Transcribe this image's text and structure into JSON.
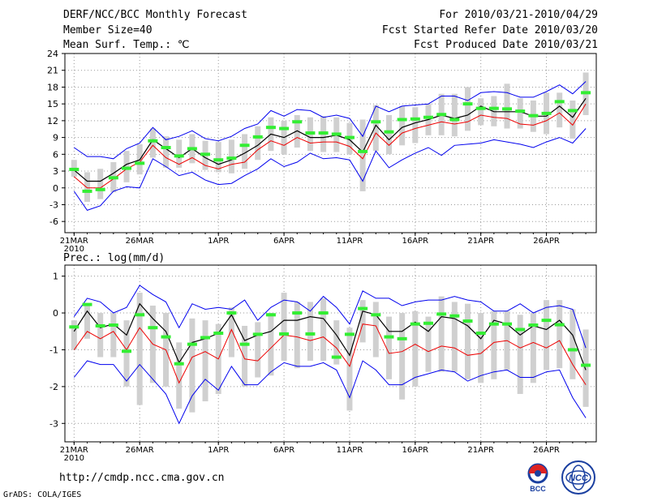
{
  "header": {
    "title": "DERF/NCC/BCC Monthly Forecast",
    "member": "Member Size=40",
    "variable": "Mean Surf. Temp.: ℃",
    "period": "For 2010/03/21-2010/04/29",
    "started": "Fcst Started Refer Date 2010/03/20",
    "produced": "Fcst Produced Date 2010/03/21"
  },
  "footer": {
    "url": "http://cmdp.ncc.cma.gov.cn",
    "credit": "GrADS: COLA/IGES",
    "logo_left": "BCC",
    "logo_right": "NCC"
  },
  "colors": {
    "envelope": "#0000ee",
    "median": "#000000",
    "mean": "#ee0000",
    "observed": "#33ee33",
    "box": "#d0d0d0",
    "grid": "#999999"
  },
  "chart_data": [
    {
      "type": "line",
      "name": "temperature",
      "title": "Mean Surf. Temp.: ℃",
      "ylim": [
        -8,
        24
      ],
      "yticks": [
        -6,
        -3,
        0,
        3,
        6,
        9,
        12,
        15,
        18,
        21,
        24
      ],
      "xticks": [
        {
          "day": 1,
          "label": "21MAR",
          "sub": "2010"
        },
        {
          "day": 6,
          "label": "26MAR"
        },
        {
          "day": 12,
          "label": "1APR"
        },
        {
          "day": 17,
          "label": "6APR"
        },
        {
          "day": 22,
          "label": "11APR"
        },
        {
          "day": 27,
          "label": "16APR"
        },
        {
          "day": 32,
          "label": "21APR"
        },
        {
          "day": 37,
          "label": "26APR"
        }
      ],
      "days": 40,
      "series": [
        {
          "name": "max",
          "values": [
            7.2,
            5.6,
            5.6,
            5.2,
            7.0,
            8.0,
            10.8,
            8.6,
            9.2,
            10.2,
            8.8,
            8.4,
            9.2,
            10.6,
            11.4,
            13.8,
            12.8,
            14.0,
            13.8,
            12.6,
            13.0,
            12.4,
            9.2,
            14.6,
            13.6,
            14.6,
            14.8,
            15.0,
            16.4,
            16.4,
            15.6,
            17.0,
            17.2,
            17.0,
            16.2,
            16.2,
            17.2,
            18.4,
            16.8,
            19.0
          ]
        },
        {
          "name": "median",
          "values": [
            3.2,
            1.2,
            1.2,
            2.6,
            4.2,
            5.0,
            8.6,
            7.0,
            5.4,
            7.0,
            5.4,
            4.2,
            5.0,
            6.2,
            7.6,
            9.6,
            9.0,
            10.2,
            9.0,
            9.0,
            9.4,
            8.6,
            6.4,
            11.2,
            8.6,
            10.8,
            11.6,
            12.2,
            13.0,
            12.4,
            13.0,
            14.6,
            13.6,
            13.6,
            13.6,
            12.8,
            12.8,
            14.6,
            12.6,
            16.0
          ]
        },
        {
          "name": "mean",
          "values": [
            2.0,
            0.0,
            0.0,
            1.6,
            3.4,
            4.6,
            7.6,
            5.4,
            4.2,
            5.4,
            4.0,
            3.4,
            4.2,
            4.6,
            6.8,
            8.4,
            7.6,
            9.0,
            8.0,
            8.2,
            8.2,
            7.4,
            5.2,
            9.8,
            7.6,
            9.8,
            10.6,
            11.2,
            11.8,
            11.4,
            11.8,
            13.0,
            12.6,
            12.4,
            11.4,
            11.2,
            12.0,
            13.4,
            11.2,
            15.0
          ]
        },
        {
          "name": "min",
          "values": [
            -0.6,
            -4.0,
            -3.2,
            -0.6,
            0.2,
            0.0,
            5.2,
            3.8,
            2.2,
            2.8,
            1.4,
            0.6,
            0.8,
            2.2,
            3.4,
            5.2,
            3.8,
            4.6,
            6.2,
            5.2,
            5.4,
            5.0,
            1.2,
            6.6,
            3.6,
            5.0,
            6.2,
            7.2,
            5.8,
            7.6,
            7.8,
            8.0,
            8.6,
            8.2,
            7.8,
            7.2,
            8.2,
            9.0,
            8.0,
            10.6
          ]
        },
        {
          "name": "observed",
          "values": [
            3.3,
            -0.6,
            -0.3,
            1.8,
            3.5,
            4.4,
            8.4,
            7.2,
            5.7,
            7.0,
            6.0,
            5.0,
            5.3,
            7.6,
            9.1,
            10.8,
            10.6,
            11.8,
            9.8,
            9.8,
            9.6,
            9.0,
            6.5,
            11.8,
            10.0,
            12.2,
            12.3,
            12.6,
            13.1,
            12.2,
            15.0,
            14.2,
            14.2,
            14.1,
            13.7,
            12.9,
            13.3,
            15.4,
            13.8,
            17.0
          ]
        }
      ],
      "boxes": [
        [
          2,
          5
        ],
        [
          -2.5,
          2.8
        ],
        [
          -2.0,
          3.4
        ],
        [
          -0.8,
          4.6
        ],
        [
          1.0,
          6.6
        ],
        [
          2.4,
          7.8
        ],
        [
          5.4,
          10.6
        ],
        [
          3.6,
          9.2
        ],
        [
          3.6,
          8.6
        ],
        [
          4.4,
          9.6
        ],
        [
          3.2,
          8.4
        ],
        [
          2.8,
          8.2
        ],
        [
          2.6,
          8.6
        ],
        [
          3.4,
          9.6
        ],
        [
          5.0,
          11.0
        ],
        [
          6.6,
          12.6
        ],
        [
          6.0,
          12.0
        ],
        [
          7.2,
          13.0
        ],
        [
          6.6,
          12.6
        ],
        [
          6.4,
          12.8
        ],
        [
          6.4,
          12.6
        ],
        [
          6.0,
          11.6
        ],
        [
          -0.6,
          12.2
        ],
        [
          6.6,
          14.8
        ],
        [
          6.0,
          13.0
        ],
        [
          7.6,
          14.6
        ],
        [
          8.0,
          14.4
        ],
        [
          9.4,
          15.0
        ],
        [
          9.4,
          16.8
        ],
        [
          9.2,
          16.8
        ],
        [
          10.2,
          18.0
        ],
        [
          11.2,
          16.0
        ],
        [
          11.0,
          16.4
        ],
        [
          10.6,
          18.6
        ],
        [
          10.6,
          16.0
        ],
        [
          10.0,
          15.6
        ],
        [
          9.6,
          17.0
        ],
        [
          10.8,
          17.0
        ],
        [
          8.8,
          15.6
        ],
        [
          13.0,
          20.6
        ]
      ]
    },
    {
      "type": "line",
      "name": "precipitation",
      "title": "Prec.: log(mm/d)",
      "ylim": [
        -3.5,
        1.3
      ],
      "yticks": [
        -3,
        -2,
        -1,
        0,
        1
      ],
      "xticks": [
        {
          "day": 1,
          "label": "21MAR",
          "sub": "2010"
        },
        {
          "day": 6,
          "label": "26MAR"
        },
        {
          "day": 12,
          "label": "1APR"
        },
        {
          "day": 17,
          "label": "6APR"
        },
        {
          "day": 22,
          "label": "11APR"
        },
        {
          "day": 27,
          "label": "16APR"
        },
        {
          "day": 32,
          "label": "21APR"
        },
        {
          "day": 37,
          "label": "26APR"
        }
      ],
      "days": 40,
      "series": [
        {
          "name": "max",
          "values": [
            -0.1,
            0.4,
            0.3,
            0.0,
            0.15,
            0.75,
            0.5,
            0.3,
            -0.4,
            0.25,
            0.1,
            0.15,
            0.1,
            0.35,
            -0.2,
            0.15,
            0.35,
            0.3,
            0.05,
            0.45,
            0.15,
            -0.3,
            0.6,
            0.4,
            0.4,
            0.2,
            0.3,
            0.35,
            0.35,
            0.45,
            0.35,
            0.3,
            0.05,
            0.05,
            0.25,
            0.0,
            0.15,
            0.2,
            0.1,
            -0.95
          ]
        },
        {
          "name": "median",
          "values": [
            -0.5,
            0.05,
            -0.4,
            -0.3,
            -0.6,
            0.25,
            -0.15,
            -0.5,
            -1.35,
            -0.8,
            -0.7,
            -0.55,
            -0.05,
            -0.75,
            -0.6,
            -0.5,
            -0.2,
            -0.2,
            -0.1,
            -0.15,
            -0.6,
            -1.15,
            0.05,
            -0.05,
            -0.5,
            -0.5,
            -0.25,
            -0.5,
            -0.1,
            -0.15,
            -0.35,
            -0.7,
            -0.2,
            -0.3,
            -0.6,
            -0.35,
            -0.45,
            -0.2,
            -0.6,
            -1.55
          ]
        },
        {
          "name": "mean",
          "values": [
            -1.0,
            -0.5,
            -0.7,
            -0.5,
            -1.0,
            -0.4,
            -0.85,
            -1.0,
            -1.9,
            -1.2,
            -1.05,
            -1.25,
            -0.45,
            -1.25,
            -1.3,
            -0.95,
            -0.6,
            -0.65,
            -0.75,
            -0.65,
            -0.95,
            -1.45,
            -0.3,
            -0.35,
            -1.1,
            -1.05,
            -0.85,
            -1.05,
            -0.9,
            -0.95,
            -1.15,
            -1.1,
            -0.8,
            -0.75,
            -0.95,
            -0.8,
            -0.95,
            -0.75,
            -1.4,
            -1.95
          ]
        },
        {
          "name": "min",
          "values": [
            -1.75,
            -1.3,
            -1.4,
            -1.4,
            -1.85,
            -1.4,
            -1.8,
            -2.2,
            -3.0,
            -2.25,
            -1.8,
            -2.1,
            -1.45,
            -1.95,
            -1.95,
            -1.6,
            -1.35,
            -1.45,
            -1.45,
            -1.35,
            -1.55,
            -2.3,
            -1.3,
            -1.55,
            -1.95,
            -1.95,
            -1.75,
            -1.65,
            -1.55,
            -1.6,
            -1.85,
            -1.7,
            -1.6,
            -1.55,
            -1.75,
            -1.75,
            -1.6,
            -1.55,
            -2.3,
            -2.85
          ]
        },
        {
          "name": "observed",
          "values": [
            -0.38,
            0.23,
            -0.35,
            -0.33,
            -1.04,
            -0.05,
            -0.4,
            -0.65,
            -1.38,
            -0.85,
            -0.67,
            -0.55,
            0.0,
            -0.85,
            -0.58,
            -0.05,
            -0.57,
            0.0,
            -0.57,
            0.0,
            -1.2,
            -0.58,
            0.12,
            -0.05,
            -0.65,
            -0.7,
            -0.3,
            -0.28,
            -0.03,
            -0.08,
            -0.22,
            -0.55,
            -0.3,
            -0.3,
            -0.45,
            -0.33,
            -0.2,
            -0.32,
            -1.0,
            -1.42
          ]
        }
      ],
      "boxes": [
        [
          -1.0,
          -0.2
        ],
        [
          -0.7,
          0.25
        ],
        [
          -1.2,
          0.0
        ],
        [
          -1.2,
          0.0
        ],
        [
          -2.0,
          -0.2
        ],
        [
          -2.5,
          0.55
        ],
        [
          -1.9,
          0.2
        ],
        [
          -2.0,
          0.0
        ],
        [
          -2.6,
          -0.8
        ],
        [
          -2.7,
          -0.15
        ],
        [
          -2.4,
          -0.2
        ],
        [
          -2.2,
          -0.3
        ],
        [
          -1.2,
          0.15
        ],
        [
          -2.0,
          -0.35
        ],
        [
          -1.75,
          -0.25
        ],
        [
          -1.7,
          0.0
        ],
        [
          -1.3,
          0.55
        ],
        [
          -1.5,
          0.3
        ],
        [
          -1.3,
          0.3
        ],
        [
          -1.3,
          0.4
        ],
        [
          -1.4,
          -0.2
        ],
        [
          -2.65,
          -0.4
        ],
        [
          -0.8,
          0.35
        ],
        [
          -1.2,
          0.3
        ],
        [
          -1.8,
          -0.1
        ],
        [
          -2.35,
          0.0
        ],
        [
          -2.0,
          0.05
        ],
        [
          -1.6,
          -0.1
        ],
        [
          -1.6,
          0.45
        ],
        [
          -1.6,
          0.3
        ],
        [
          -1.8,
          0.25
        ],
        [
          -1.9,
          0.0
        ],
        [
          -1.8,
          0.05
        ],
        [
          -1.55,
          0.05
        ],
        [
          -2.2,
          -0.05
        ],
        [
          -1.9,
          0.0
        ],
        [
          -1.55,
          0.35
        ],
        [
          -1.5,
          0.35
        ],
        [
          -1.8,
          0.1
        ],
        [
          -2.55,
          -0.45
        ]
      ]
    }
  ]
}
